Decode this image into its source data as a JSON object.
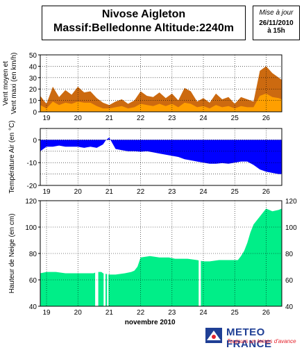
{
  "header": {
    "title_line1": "Nivose Aigleton",
    "title_line2": "Massif:Belledonne Altitude:2240m",
    "update_label": "Mise à jour",
    "update_date": "26/11/2010",
    "update_time": "à 15h"
  },
  "logo": {
    "brand": "METEO FRANCE",
    "tagline": "Toujours un temps d'avance"
  },
  "colors": {
    "wind_max": "#cc6a10",
    "wind_mean": "#ff9f00",
    "temperature": "#0000ff",
    "snow": "#00ee88"
  },
  "chart_data": [
    {
      "type": "area",
      "ylabel_lines": [
        "Vent moyen et",
        "Vent maxi (en km/h)"
      ],
      "xlabel": "",
      "ylim": [
        0,
        50
      ],
      "yticks": [
        "0",
        "10",
        "20",
        "30",
        "40",
        "50"
      ],
      "xlim": [
        18.8,
        26.5
      ],
      "xtick_labels": [
        "19",
        "20",
        "21",
        "22",
        "23",
        "24",
        "25",
        "26"
      ],
      "grid": true,
      "series": [
        {
          "key": "wind_max",
          "x": [
            18.8,
            19.0,
            19.2,
            19.4,
            19.6,
            19.8,
            20.0,
            20.2,
            20.4,
            20.6,
            20.8,
            21.0,
            21.2,
            21.4,
            21.6,
            21.8,
            22.0,
            22.2,
            22.4,
            22.6,
            22.8,
            23.0,
            23.2,
            23.4,
            23.6,
            23.8,
            24.0,
            24.2,
            24.4,
            24.6,
            24.8,
            25.0,
            25.2,
            25.4,
            25.6,
            25.8,
            26.0,
            26.2,
            26.4,
            26.5
          ],
          "values": [
            14,
            7,
            22,
            13,
            19,
            15,
            22,
            17,
            18,
            12,
            8,
            6,
            9,
            11,
            7,
            10,
            18,
            14,
            13,
            17,
            12,
            16,
            10,
            21,
            18,
            9,
            12,
            8,
            16,
            11,
            13,
            7,
            13,
            11,
            9,
            36,
            40,
            34,
            30,
            28
          ]
        },
        {
          "key": "wind_mean",
          "x": [
            18.8,
            19.0,
            19.2,
            19.4,
            19.6,
            19.8,
            20.0,
            20.2,
            20.4,
            20.6,
            20.8,
            21.0,
            21.2,
            21.4,
            21.6,
            21.8,
            22.0,
            22.2,
            22.4,
            22.6,
            22.8,
            23.0,
            23.2,
            23.4,
            23.6,
            23.8,
            24.0,
            24.2,
            24.4,
            24.6,
            24.8,
            25.0,
            25.2,
            25.4,
            25.6,
            25.8,
            26.0,
            26.2,
            26.4,
            26.5
          ],
          "values": [
            6,
            3,
            9,
            6,
            8,
            7,
            9,
            8,
            8,
            5,
            3,
            3,
            4,
            5,
            3,
            4,
            7,
            6,
            5,
            7,
            5,
            7,
            4,
            8,
            7,
            4,
            5,
            3,
            6,
            4,
            5,
            3,
            5,
            4,
            4,
            14,
            16,
            13,
            12,
            11
          ]
        }
      ]
    },
    {
      "type": "area",
      "ylabel": "Température Air (en °C)",
      "xlabel": "",
      "ylim": [
        -20,
        5
      ],
      "yticks": [
        "-20",
        "-10",
        "0"
      ],
      "xlim": [
        18.8,
        26.5
      ],
      "xtick_labels": [
        "19",
        "20",
        "21",
        "22",
        "23",
        "24",
        "25",
        "26"
      ],
      "grid": true,
      "series": [
        {
          "key": "temperature",
          "x": [
            18.8,
            19.0,
            19.2,
            19.4,
            19.6,
            19.8,
            20.0,
            20.2,
            20.4,
            20.6,
            20.8,
            20.9,
            21.0,
            21.1,
            21.2,
            21.4,
            21.6,
            21.8,
            22.0,
            22.2,
            22.4,
            22.6,
            22.8,
            23.0,
            23.2,
            23.4,
            23.6,
            23.8,
            24.0,
            24.2,
            24.4,
            24.6,
            24.8,
            25.0,
            25.2,
            25.4,
            25.6,
            25.8,
            26.0,
            26.2,
            26.4,
            26.5
          ],
          "values": [
            -5,
            -3,
            -3,
            -2.5,
            -3,
            -3,
            -3,
            -3.5,
            -3,
            -3.5,
            -2,
            0,
            1,
            -1.5,
            -4,
            -4.5,
            -5,
            -5,
            -5.2,
            -5,
            -5.5,
            -6,
            -6.5,
            -7,
            -7.5,
            -8.5,
            -9,
            -9.5,
            -10,
            -10.5,
            -10.5,
            -10.2,
            -10.5,
            -10,
            -9.5,
            -9.5,
            -11,
            -13,
            -14,
            -14.5,
            -15,
            -15
          ]
        }
      ]
    },
    {
      "type": "area",
      "ylabel": "Hauteur de Neige (en cm)",
      "xlabel": "novembre 2010",
      "ylim": [
        40,
        120
      ],
      "yticks": [
        "40",
        "60",
        "80",
        "100",
        "120"
      ],
      "xlim": [
        18.8,
        26.5
      ],
      "xtick_labels": [
        "19",
        "20",
        "21",
        "22",
        "23",
        "24",
        "25",
        "26"
      ],
      "grid": true,
      "series": [
        {
          "key": "snow",
          "x": [
            18.8,
            19.0,
            19.3,
            19.6,
            19.9,
            20.1,
            20.5,
            20.6,
            20.75,
            20.8,
            21.0,
            21.2,
            21.5,
            21.7,
            21.8,
            21.9,
            22.0,
            22.3,
            22.6,
            22.9,
            23.1,
            23.3,
            23.5,
            23.8,
            24.0,
            24.2,
            24.5,
            24.8,
            25.0,
            25.1,
            25.2,
            25.3,
            25.4,
            25.5,
            25.6,
            25.8,
            26.0,
            26.2,
            26.4,
            26.5
          ],
          "values": [
            65,
            66,
            66,
            65,
            65,
            65,
            65,
            66,
            66,
            65,
            64,
            64,
            65,
            66,
            67,
            70,
            77,
            78,
            77,
            77,
            76,
            76,
            76,
            75,
            74,
            74,
            75,
            75,
            75,
            75,
            78,
            82,
            88,
            96,
            102,
            108,
            114,
            112,
            113,
            114
          ]
        }
      ],
      "gaps": [
        [
          20.55,
          20.65
        ],
        [
          20.82,
          20.88
        ],
        [
          20.93,
          20.96
        ],
        [
          23.85,
          23.92
        ]
      ]
    }
  ]
}
